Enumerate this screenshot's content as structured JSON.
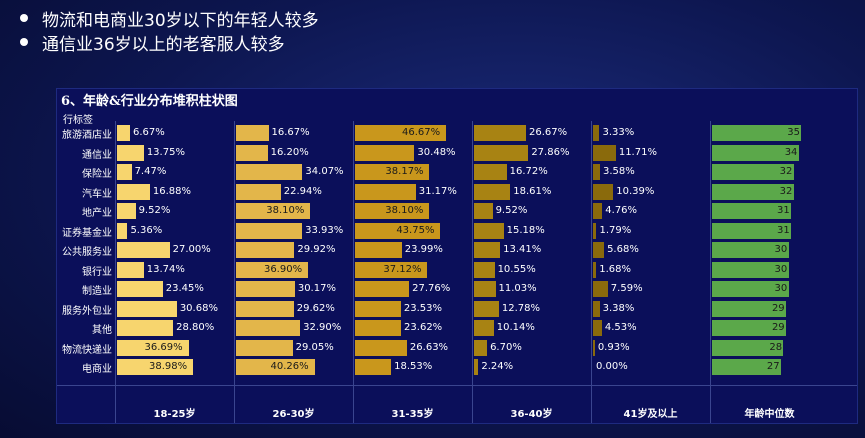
{
  "bullets": [
    "物流和电商业30岁以下的年轻人较多",
    "通信业36岁以上的老客服人较多"
  ],
  "chart_data": {
    "type": "bar",
    "title": "6、年龄&行业分布堆积柱状图",
    "row_header": "行标签",
    "categories": [
      "旅游酒店业",
      "通信业",
      "保险业",
      "汽车业",
      "地产业",
      "证券基金业",
      "公共服务业",
      "银行业",
      "制造业",
      "服务外包业",
      "其他",
      "物流快递业",
      "电商业"
    ],
    "series": [
      {
        "name": "18-25岁",
        "unit": "%",
        "color": "#f7d56e",
        "values": [
          6.67,
          13.75,
          7.47,
          16.88,
          9.52,
          5.36,
          27.0,
          13.74,
          23.45,
          30.68,
          28.8,
          36.69,
          38.98
        ]
      },
      {
        "name": "26-30岁",
        "unit": "%",
        "color": "#e3b64a",
        "values": [
          16.67,
          16.2,
          34.07,
          22.94,
          38.1,
          33.93,
          29.92,
          36.9,
          30.17,
          29.62,
          32.9,
          29.05,
          40.26
        ]
      },
      {
        "name": "31-35岁",
        "unit": "%",
        "color": "#c9971c",
        "values": [
          46.67,
          30.48,
          38.17,
          31.17,
          38.1,
          43.75,
          23.99,
          37.12,
          27.76,
          23.53,
          23.62,
          26.63,
          18.53
        ]
      },
      {
        "name": "36-40岁",
        "unit": "%",
        "color": "#a88313",
        "values": [
          26.67,
          27.86,
          16.72,
          18.61,
          9.52,
          15.18,
          13.41,
          10.55,
          11.03,
          12.78,
          10.14,
          6.7,
          2.24
        ]
      },
      {
        "name": "41岁及以上",
        "unit": "%",
        "color": "#8a6a0c",
        "values": [
          3.33,
          11.71,
          3.58,
          10.39,
          4.76,
          1.79,
          5.68,
          1.68,
          7.59,
          3.38,
          4.53,
          0.93,
          0.0
        ]
      },
      {
        "name": "年龄中位数",
        "unit": "",
        "color": "#5ba84a",
        "values": [
          35,
          34,
          32,
          32,
          31,
          31,
          30,
          30,
          30,
          29,
          29,
          28,
          27
        ]
      }
    ]
  }
}
